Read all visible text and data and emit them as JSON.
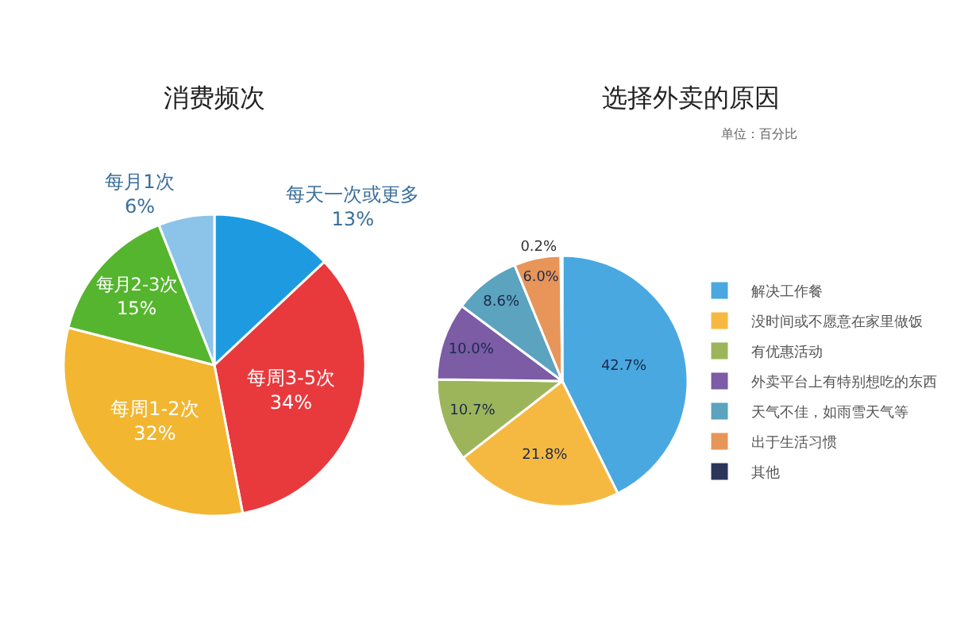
{
  "chart_data": [
    {
      "type": "pie",
      "title": "消费频次",
      "categories": [
        "每天一次或更多",
        "每周3-5次",
        "每周1-2次",
        "每月2-3次",
        "每月1次"
      ],
      "values": [
        13,
        34,
        32,
        15,
        6
      ],
      "value_labels": [
        "13%",
        "34%",
        "32%",
        "15%",
        "6%"
      ],
      "colors": [
        "#1e9be0",
        "#e8393d",
        "#f2b631",
        "#55b52e",
        "#8cc3e8"
      ],
      "legend": false
    },
    {
      "type": "pie",
      "title": "选择外卖的原因",
      "categories": [
        "解决工作餐",
        "没时间或不愿意在家里做饭",
        "有优惠活动",
        "外卖平台上有特别想吃的东西",
        "天气不佳，如雨雪天气等",
        "出于生活习惯",
        "其他"
      ],
      "values": [
        42.7,
        21.8,
        10.7,
        10.0,
        8.6,
        6.0,
        0.2
      ],
      "value_labels": [
        "42.7%",
        "21.8%",
        "10.7%",
        "10.0%",
        "8.6%",
        "6.0%",
        "0.2%"
      ],
      "colors": [
        "#4aa8e0",
        "#f5b942",
        "#9cb55a",
        "#7b5ca5",
        "#5ba3bf",
        "#e8955a",
        "#2a3558"
      ],
      "legend": "right",
      "annotations": [
        "单位：百分比"
      ]
    }
  ]
}
